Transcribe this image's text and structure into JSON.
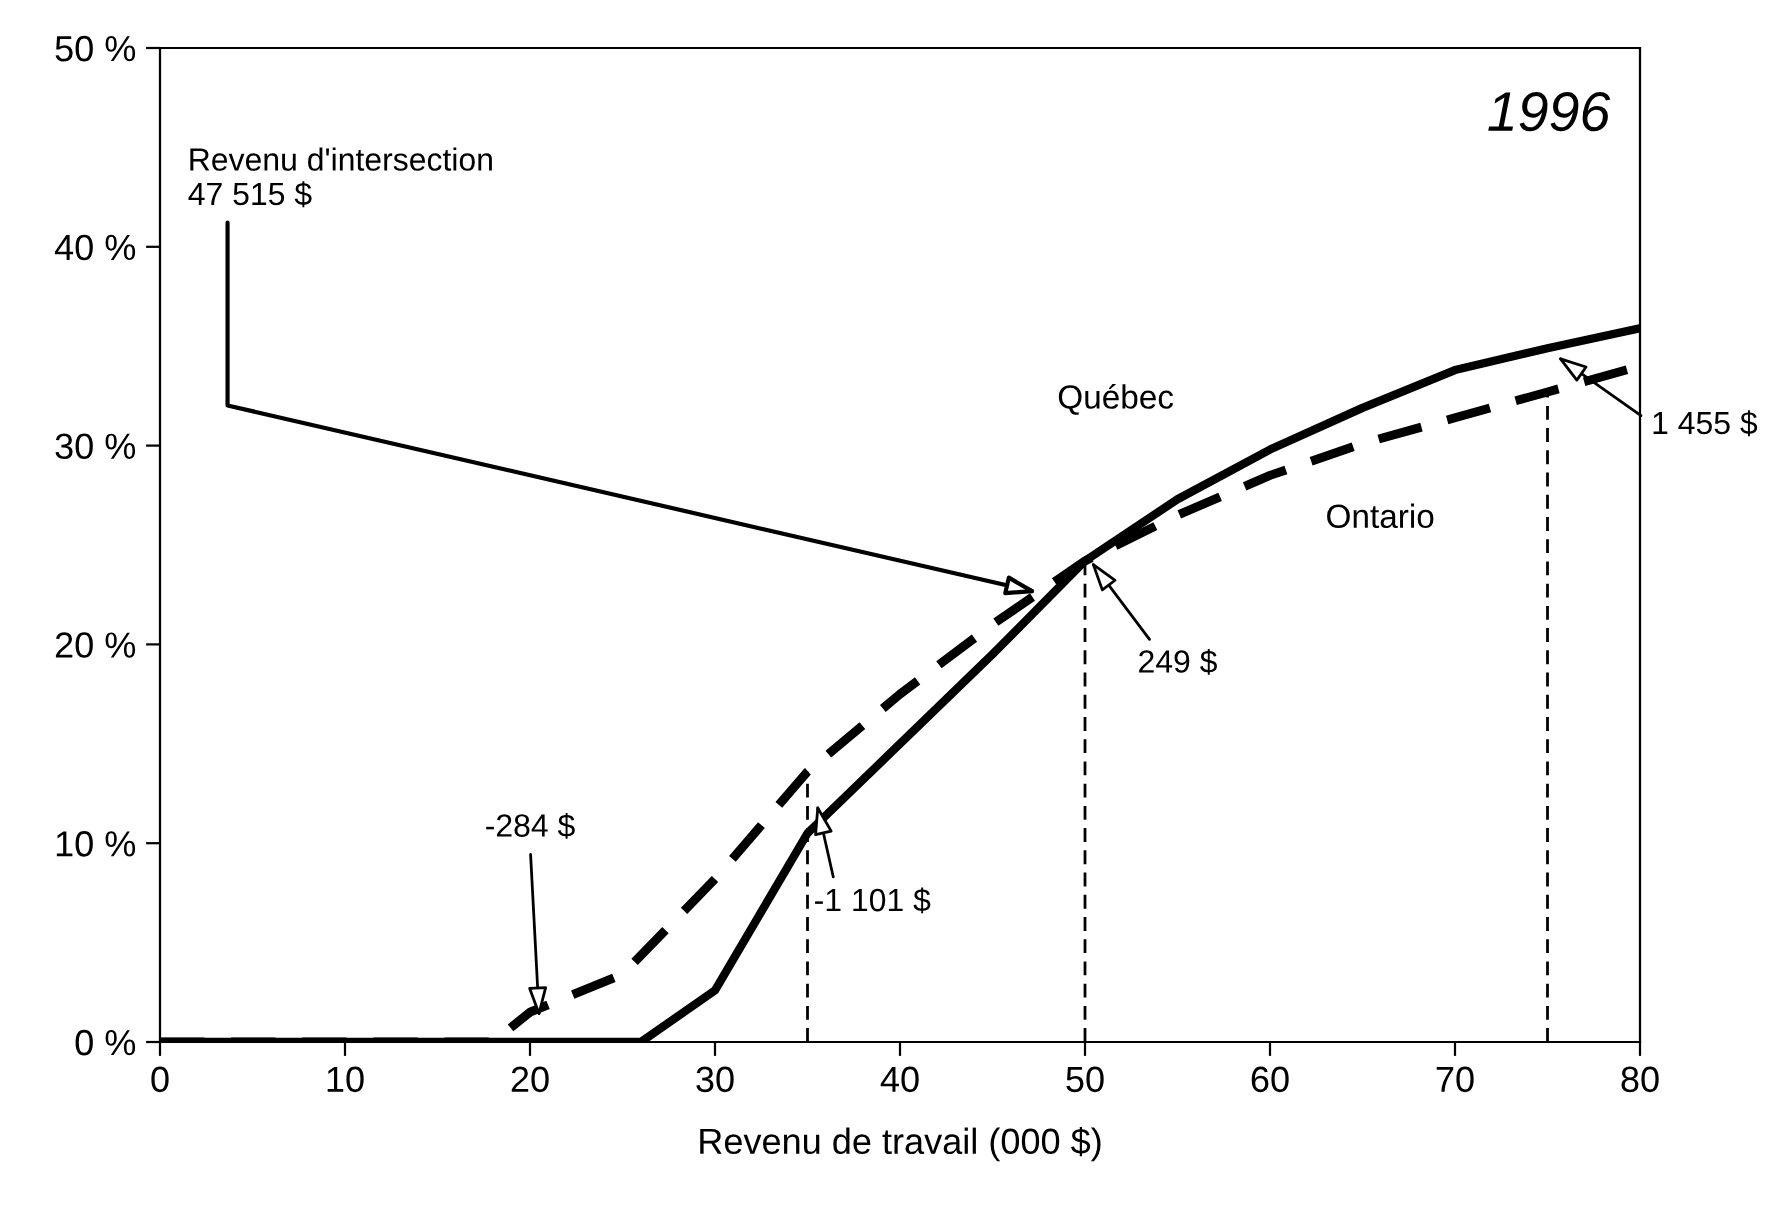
{
  "chart_data": {
    "type": "line",
    "title": "1996",
    "xlabel": "Revenu de travail (000 $)",
    "xlim": [
      0,
      80
    ],
    "xticks": [
      0,
      10,
      20,
      30,
      40,
      50,
      60,
      70,
      80
    ],
    "ylim": [
      0,
      50
    ],
    "yticks": [
      {
        "value": 0,
        "label": "0 %"
      },
      {
        "value": 10,
        "label": "10 %"
      },
      {
        "value": 20,
        "label": "20 %"
      },
      {
        "value": 30,
        "label": "30 %"
      },
      {
        "value": 40,
        "label": "40 %"
      },
      {
        "value": 50,
        "label": "50 %"
      }
    ],
    "grid": false,
    "legend": false,
    "marker": "none",
    "series": [
      {
        "name": "Québec",
        "color": "#000000",
        "line_style": "solid",
        "x": [
          0,
          26,
          30,
          35,
          40,
          45,
          50,
          55,
          60,
          65,
          70,
          75,
          80
        ],
        "values": [
          0,
          0,
          2.6,
          10.5,
          15,
          19.5,
          24.2,
          27.3,
          29.8,
          31.9,
          33.8,
          34.9,
          35.9
        ]
      },
      {
        "name": "Ontario",
        "color": "#000000",
        "line_style": "dashed",
        "x": [
          0,
          18,
          20,
          25,
          30,
          35,
          40,
          45,
          50,
          55,
          60,
          65,
          70,
          75,
          80
        ],
        "values": [
          0,
          0,
          1.5,
          3.4,
          8.2,
          13.6,
          17.5,
          21,
          24.2,
          26.5,
          28.5,
          30.1,
          31.4,
          32.7,
          34
        ]
      }
    ],
    "ref_lines": [
      {
        "axis": "x",
        "value": 35,
        "line_style": "dashed"
      },
      {
        "axis": "x",
        "value": 50,
        "line_style": "dashed"
      },
      {
        "axis": "x",
        "value": 75,
        "line_style": "dashed"
      }
    ],
    "annotations": [
      {
        "text": "Revenu d'intersection\n47 515 $",
        "x": 47.5,
        "y": 22.6
      },
      {
        "text": "-284 $",
        "x": 20.5,
        "y": 1.2
      },
      {
        "text": "-1 101 $",
        "x": 35.5,
        "y": 12
      },
      {
        "text": "249 $",
        "x": 50.3,
        "y": 24.2
      },
      {
        "text": "1 455 $",
        "x": 75.5,
        "y": 34.5
      }
    ]
  }
}
